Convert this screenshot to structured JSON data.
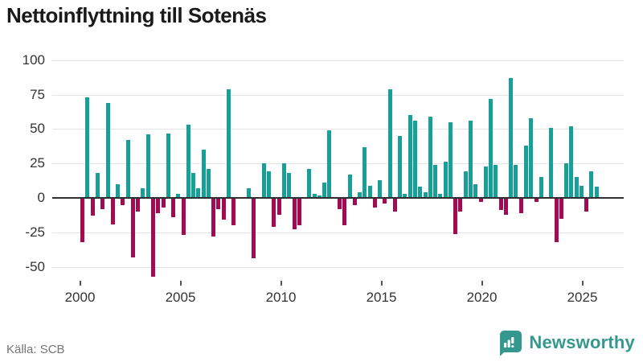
{
  "title": "Nettoinflyttning till Sotenäs",
  "source": "Källa: SCB",
  "brand": {
    "name": "Newsworthy",
    "color": "#35988f",
    "icon": "bar-chart-speech-bubble"
  },
  "colors": {
    "positive_bar": "#16a098",
    "negative_bar": "#a30a54",
    "zero_line": "#2f2f2f",
    "gridline": "#e4e4e4",
    "axis_text": "#333333",
    "source_text": "#757575"
  },
  "chart_data": {
    "type": "bar",
    "title": "Nettoinflyttning till Sotenäs",
    "xlabel": "",
    "ylabel": "",
    "grid": "horizontal",
    "legend": "none",
    "ylim": [
      -50,
      100
    ],
    "y_ticks": [
      100,
      75,
      50,
      25,
      0,
      -25,
      -50
    ],
    "x_tick_years": [
      2000,
      2005,
      2010,
      2015,
      2020,
      2025
    ],
    "frequency": "quarterly",
    "start_year": 2000,
    "start_quarter": 1,
    "end_year": 2025,
    "end_quarter": 3,
    "values": [
      -32,
      73,
      -13,
      18,
      -8,
      69,
      -19,
      10,
      -5,
      42,
      -43,
      -10,
      7,
      46,
      -57,
      -11,
      -7,
      47,
      -14,
      3,
      -27,
      53,
      18,
      7,
      35,
      21,
      -28,
      -8,
      -16,
      79,
      -20,
      0,
      0,
      7,
      -44,
      0,
      25,
      19,
      -21,
      -12,
      25,
      18,
      -23,
      -20,
      0,
      21,
      3,
      2,
      11,
      49,
      0,
      -8,
      -20,
      17,
      -5,
      4,
      37,
      9,
      -7,
      13,
      -4,
      79,
      -10,
      45,
      3,
      60,
      56,
      8,
      4,
      59,
      24,
      3,
      26,
      55,
      -26,
      -10,
      19,
      56,
      10,
      -3,
      23,
      72,
      24,
      -9,
      -12,
      87,
      24,
      -11,
      38,
      58,
      -3,
      15,
      0,
      51,
      -32,
      -15,
      25,
      52,
      15,
      9,
      -10,
      19,
      8
    ]
  }
}
